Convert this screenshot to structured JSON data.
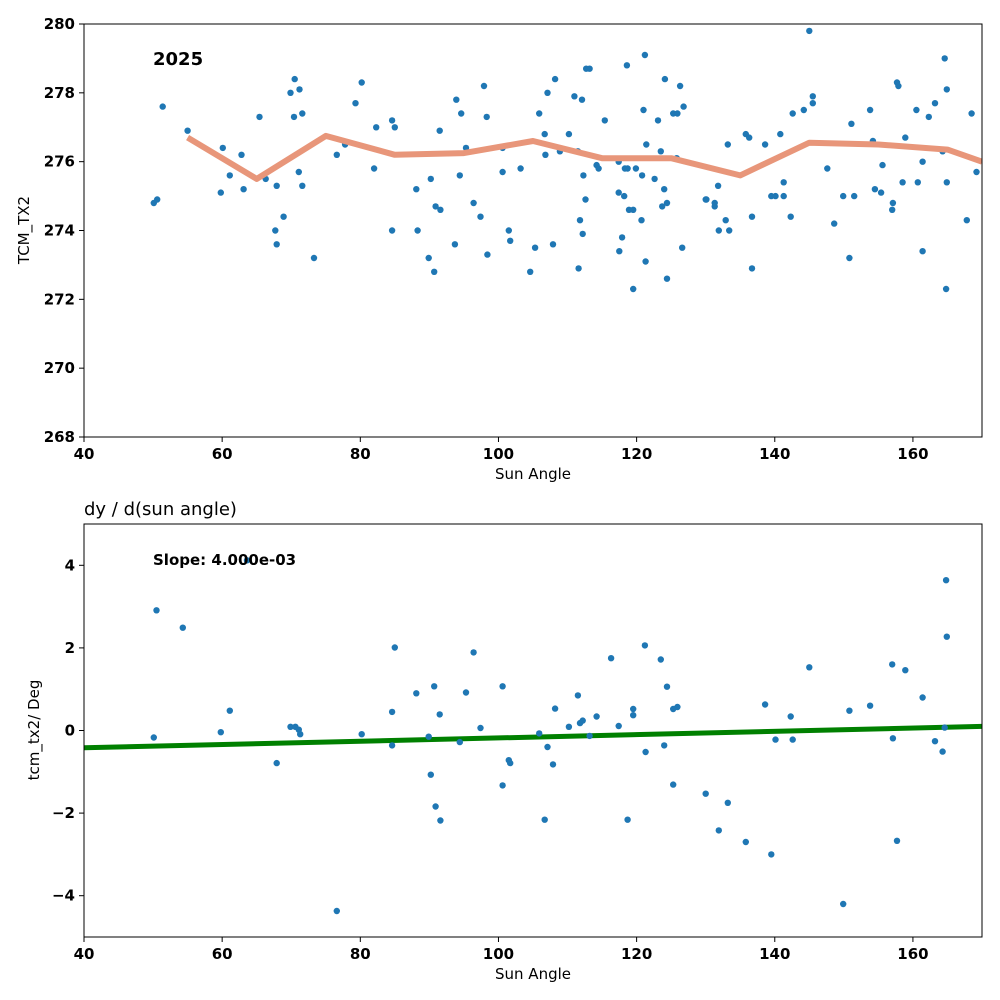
{
  "chart_data": [
    {
      "type": "scatter",
      "title": "",
      "annotation": "2025",
      "xlabel": "Sun Angle",
      "ylabel": "TCM_TX2",
      "xlim": [
        40,
        170
      ],
      "ylim": [
        268,
        280
      ],
      "xticks": [
        40,
        60,
        80,
        100,
        120,
        140,
        160
      ],
      "yticks": [
        268,
        270,
        272,
        274,
        276,
        278,
        280
      ],
      "grid": false,
      "colors": {
        "points": "#1f77b4",
        "trend": "#e8967a"
      },
      "series": [
        {
          "kind": "points",
          "values": [
            [
              50.1,
              274.8
            ],
            [
              50.6,
              274.9
            ],
            [
              51.4,
              277.6
            ],
            [
              55.0,
              276.9
            ],
            [
              59.8,
              275.1
            ],
            [
              60.1,
              276.4
            ],
            [
              61.1,
              275.6
            ],
            [
              62.8,
              276.2
            ],
            [
              63.1,
              275.2
            ],
            [
              65.4,
              277.3
            ],
            [
              66.3,
              275.5
            ],
            [
              67.7,
              274.0
            ],
            [
              67.9,
              273.6
            ],
            [
              67.9,
              275.3
            ],
            [
              68.9,
              274.4
            ],
            [
              69.9,
              278.0
            ],
            [
              70.4,
              277.3
            ],
            [
              70.5,
              278.4
            ],
            [
              71.1,
              275.7
            ],
            [
              71.2,
              278.1
            ],
            [
              71.6,
              277.4
            ],
            [
              71.6,
              275.3
            ],
            [
              73.3,
              273.2
            ],
            [
              76.6,
              276.2
            ],
            [
              77.8,
              276.5
            ],
            [
              79.3,
              277.7
            ],
            [
              80.2,
              278.3
            ],
            [
              82.0,
              275.8
            ],
            [
              82.3,
              277.0
            ],
            [
              84.6,
              277.2
            ],
            [
              84.6,
              274.0
            ],
            [
              85.0,
              277.0
            ],
            [
              88.1,
              275.2
            ],
            [
              88.3,
              274.0
            ],
            [
              89.9,
              273.2
            ],
            [
              90.2,
              275.5
            ],
            [
              90.7,
              272.8
            ],
            [
              90.9,
              274.7
            ],
            [
              91.5,
              276.9
            ],
            [
              91.6,
              274.6
            ],
            [
              93.7,
              273.6
            ],
            [
              93.9,
              277.8
            ],
            [
              94.4,
              275.6
            ],
            [
              94.6,
              277.4
            ],
            [
              95.3,
              276.4
            ],
            [
              96.4,
              274.8
            ],
            [
              97.4,
              274.4
            ],
            [
              97.9,
              278.2
            ],
            [
              98.3,
              277.3
            ],
            [
              98.4,
              273.3
            ],
            [
              100.6,
              275.7
            ],
            [
              100.6,
              276.4
            ],
            [
              101.5,
              274.0
            ],
            [
              101.7,
              273.7
            ],
            [
              103.2,
              275.8
            ],
            [
              104.6,
              272.8
            ],
            [
              105.3,
              273.5
            ],
            [
              105.9,
              277.4
            ],
            [
              106.7,
              276.8
            ],
            [
              106.8,
              276.2
            ],
            [
              107.1,
              278.0
            ],
            [
              107.9,
              273.6
            ],
            [
              108.2,
              278.4
            ],
            [
              108.9,
              276.3
            ],
            [
              110.2,
              276.8
            ],
            [
              111.0,
              277.9
            ],
            [
              111.5,
              276.3
            ],
            [
              111.6,
              272.9
            ],
            [
              111.8,
              274.3
            ],
            [
              112.1,
              277.8
            ],
            [
              112.2,
              273.9
            ],
            [
              112.3,
              275.6
            ],
            [
              112.6,
              274.9
            ],
            [
              112.7,
              278.7
            ],
            [
              113.2,
              278.7
            ],
            [
              114.2,
              275.9
            ],
            [
              114.5,
              275.8
            ],
            [
              115.4,
              277.2
            ],
            [
              117.4,
              276.0
            ],
            [
              117.4,
              275.1
            ],
            [
              117.5,
              273.4
            ],
            [
              117.9,
              273.8
            ],
            [
              118.2,
              275.0
            ],
            [
              118.3,
              275.8
            ],
            [
              118.6,
              278.8
            ],
            [
              118.7,
              275.8
            ],
            [
              118.9,
              274.6
            ],
            [
              119.5,
              272.3
            ],
            [
              119.5,
              274.6
            ],
            [
              119.9,
              275.8
            ],
            [
              120.7,
              274.3
            ],
            [
              120.8,
              275.6
            ],
            [
              121.0,
              277.5
            ],
            [
              121.2,
              279.1
            ],
            [
              121.3,
              273.1
            ],
            [
              121.4,
              276.5
            ],
            [
              122.6,
              275.5
            ],
            [
              123.1,
              277.2
            ],
            [
              123.5,
              276.3
            ],
            [
              123.7,
              274.7
            ],
            [
              124.0,
              275.2
            ],
            [
              124.1,
              278.4
            ],
            [
              124.4,
              272.6
            ],
            [
              124.4,
              274.8
            ],
            [
              125.3,
              277.4
            ],
            [
              125.8,
              276.1
            ],
            [
              125.9,
              277.4
            ],
            [
              126.3,
              278.2
            ],
            [
              126.6,
              273.5
            ],
            [
              126.8,
              277.6
            ],
            [
              130.0,
              274.9
            ],
            [
              130.1,
              274.9
            ],
            [
              131.3,
              274.8
            ],
            [
              131.3,
              274.7
            ],
            [
              131.8,
              275.3
            ],
            [
              131.9,
              274.0
            ],
            [
              132.9,
              274.3
            ],
            [
              133.2,
              276.5
            ],
            [
              133.4,
              274.0
            ],
            [
              135.8,
              276.8
            ],
            [
              136.3,
              276.7
            ],
            [
              136.7,
              272.9
            ],
            [
              136.7,
              274.4
            ],
            [
              138.6,
              276.5
            ],
            [
              139.5,
              275.0
            ],
            [
              140.1,
              275.0
            ],
            [
              140.8,
              276.8
            ],
            [
              141.3,
              275.4
            ],
            [
              141.3,
              275.0
            ],
            [
              142.3,
              274.4
            ],
            [
              142.6,
              277.4
            ],
            [
              144.2,
              277.5
            ],
            [
              145.0,
              279.8
            ],
            [
              145.5,
              277.9
            ],
            [
              145.5,
              277.7
            ],
            [
              147.6,
              275.8
            ],
            [
              148.6,
              274.2
            ],
            [
              149.9,
              275.0
            ],
            [
              150.8,
              273.2
            ],
            [
              151.1,
              277.1
            ],
            [
              151.5,
              275.0
            ],
            [
              153.8,
              277.5
            ],
            [
              154.2,
              276.6
            ],
            [
              154.5,
              275.2
            ],
            [
              155.4,
              275.1
            ],
            [
              155.6,
              275.9
            ],
            [
              157.0,
              274.6
            ],
            [
              157.1,
              274.8
            ],
            [
              157.7,
              278.3
            ],
            [
              157.9,
              278.2
            ],
            [
              158.5,
              275.4
            ],
            [
              158.9,
              276.7
            ],
            [
              160.5,
              277.5
            ],
            [
              160.7,
              275.4
            ],
            [
              161.4,
              276.0
            ],
            [
              161.4,
              273.4
            ],
            [
              162.3,
              277.3
            ],
            [
              163.2,
              277.7
            ],
            [
              164.3,
              276.3
            ],
            [
              164.6,
              279.0
            ],
            [
              164.9,
              278.1
            ],
            [
              164.8,
              272.3
            ],
            [
              164.9,
              275.4
            ],
            [
              167.8,
              274.3
            ],
            [
              168.5,
              277.4
            ],
            [
              169.2,
              275.7
            ]
          ]
        },
        {
          "kind": "line",
          "x": [
            55,
            65,
            75,
            85,
            95,
            105,
            115,
            125,
            135,
            145,
            155,
            165,
            170
          ],
          "y": [
            276.7,
            275.5,
            276.75,
            276.2,
            276.25,
            276.6,
            276.1,
            276.1,
            275.6,
            276.55,
            276.5,
            276.35,
            276.0
          ]
        }
      ]
    },
    {
      "type": "scatter",
      "title": "dy / d(sun angle)",
      "annotation": "Slope: 4.000e-03",
      "xlabel": "Sun Angle",
      "ylabel": "tcm_tx2/ Deg",
      "xlim": [
        40,
        170
      ],
      "ylim": [
        -5,
        5
      ],
      "xticks": [
        40,
        60,
        80,
        100,
        120,
        140,
        160
      ],
      "yticks": [
        -4,
        -2,
        0,
        2,
        4
      ],
      "ytick_labels": [
        "−4",
        "−2",
        "0",
        "2",
        "4"
      ],
      "grid": false,
      "colors": {
        "points": "#1f77b4",
        "fit": "#008000"
      },
      "series": [
        {
          "kind": "points",
          "values": [
            [
              50.1,
              -0.17
            ],
            [
              50.5,
              2.91
            ],
            [
              54.3,
              2.49
            ],
            [
              59.8,
              -0.04
            ],
            [
              61.1,
              0.48
            ],
            [
              63.6,
              4.12
            ],
            [
              67.9,
              -0.79
            ],
            [
              69.9,
              0.09
            ],
            [
              70.6,
              0.09
            ],
            [
              71.1,
              0.02
            ],
            [
              71.3,
              -0.09
            ],
            [
              76.6,
              -4.37
            ],
            [
              80.2,
              -0.09
            ],
            [
              84.6,
              0.45
            ],
            [
              84.6,
              -0.36
            ],
            [
              85.0,
              2.01
            ],
            [
              88.1,
              0.9
            ],
            [
              89.9,
              -0.15
            ],
            [
              90.2,
              -1.07
            ],
            [
              90.7,
              1.07
            ],
            [
              90.9,
              -1.84
            ],
            [
              91.5,
              0.39
            ],
            [
              91.6,
              -2.18
            ],
            [
              94.4,
              -0.28
            ],
            [
              95.3,
              0.92
            ],
            [
              96.4,
              1.89
            ],
            [
              97.4,
              0.06
            ],
            [
              100.6,
              1.07
            ],
            [
              100.6,
              -1.33
            ],
            [
              101.5,
              -0.72
            ],
            [
              101.7,
              -0.79
            ],
            [
              105.9,
              -0.07
            ],
            [
              106.7,
              -2.16
            ],
            [
              107.1,
              -0.4
            ],
            [
              107.9,
              -0.82
            ],
            [
              108.2,
              0.53
            ],
            [
              110.2,
              0.09
            ],
            [
              111.5,
              0.85
            ],
            [
              111.8,
              0.18
            ],
            [
              112.2,
              0.24
            ],
            [
              113.2,
              -0.13
            ],
            [
              114.2,
              0.34
            ],
            [
              116.3,
              1.75
            ],
            [
              117.4,
              0.11
            ],
            [
              118.7,
              -2.16
            ],
            [
              119.5,
              0.52
            ],
            [
              119.5,
              0.37
            ],
            [
              121.2,
              2.06
            ],
            [
              121.3,
              -0.52
            ],
            [
              123.5,
              1.72
            ],
            [
              124.0,
              -0.36
            ],
            [
              124.4,
              1.06
            ],
            [
              125.3,
              -1.31
            ],
            [
              125.3,
              0.52
            ],
            [
              125.9,
              0.57
            ],
            [
              130.0,
              -1.53
            ],
            [
              131.9,
              -2.42
            ],
            [
              133.2,
              -1.75
            ],
            [
              135.8,
              -2.7
            ],
            [
              138.6,
              0.63
            ],
            [
              139.5,
              -3.0
            ],
            [
              140.1,
              -0.22
            ],
            [
              142.3,
              0.34
            ],
            [
              142.6,
              -0.22
            ],
            [
              145.0,
              1.53
            ],
            [
              149.9,
              -4.2
            ],
            [
              150.8,
              0.48
            ],
            [
              153.8,
              0.6
            ],
            [
              157.0,
              1.6
            ],
            [
              157.1,
              -0.19
            ],
            [
              157.7,
              -2.67
            ],
            [
              158.9,
              1.46
            ],
            [
              161.4,
              0.8
            ],
            [
              163.2,
              -0.26
            ],
            [
              164.3,
              -0.51
            ],
            [
              164.6,
              0.07
            ],
            [
              164.8,
              3.64
            ],
            [
              164.9,
              2.27
            ]
          ]
        },
        {
          "kind": "line",
          "x": [
            40,
            170
          ],
          "y": [
            -0.42,
            0.1
          ]
        }
      ]
    }
  ]
}
